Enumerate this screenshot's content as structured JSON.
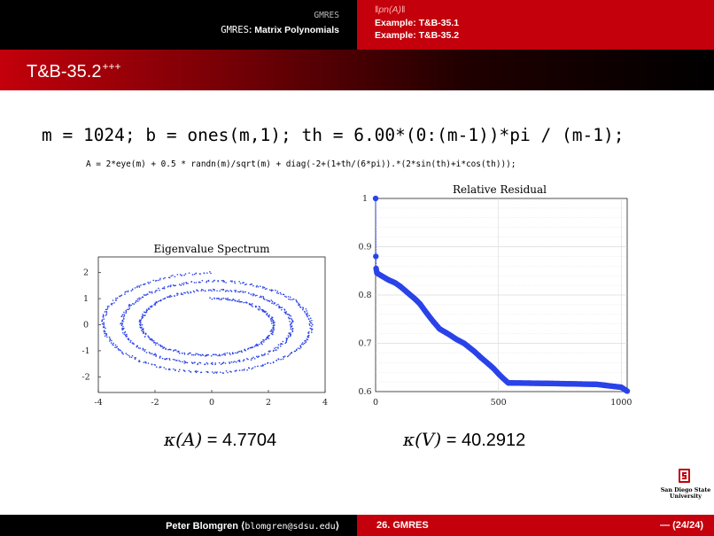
{
  "nav": {
    "section_top": "GMRES",
    "section_mono": "GMRES",
    "section_rest": ": Matrix Polynomials",
    "subsections": [
      "‖pn(A)‖",
      "Example:  T&B-35.1",
      "Example:  T&B-35.2"
    ]
  },
  "frame": {
    "title": "T&B-35.2",
    "title_sup": "+++"
  },
  "code": {
    "line1": "m = 1024; b = ones(m,1); th = 6.00*(0:(m-1))*pi / (m-1);",
    "line2": "A = 2*eye(m) + 0.5 * randn(m)/sqrt(m) + diag(-2+(1+th/(6*pi)).*(2*sin(th)+i*cos(th)));"
  },
  "chart_data": [
    {
      "type": "scatter",
      "title": "Eigenvalue Spectrum",
      "xlim": [
        -4,
        4
      ],
      "ylim": [
        -2.6,
        2.6
      ],
      "xticks": [
        -4,
        -2,
        0,
        2,
        4
      ],
      "yticks": [
        2,
        1,
        0,
        -1,
        -2
      ],
      "description_series": "eigenvalues of A along three nested elliptical turns: x = 2 + 2(1+th/(6pi))sin(th), y = (1+th/(6pi))cos(th), th in [0, 6pi]"
    },
    {
      "type": "line",
      "title": "Relative Residual",
      "xlim": [
        0,
        1024
      ],
      "ylim": [
        0.6,
        1.0
      ],
      "xticks": [
        0,
        500,
        1000
      ],
      "yticks": [
        1,
        0.9,
        0.8,
        0.7,
        0.6
      ],
      "x": [
        0,
        1,
        2,
        5,
        10,
        30,
        50,
        80,
        100,
        130,
        160,
        180,
        200,
        230,
        260,
        300,
        330,
        360,
        400,
        430,
        460,
        480,
        500,
        520,
        540,
        700,
        900,
        1000,
        1024
      ],
      "y": [
        1.0,
        0.88,
        0.855,
        0.846,
        0.844,
        0.838,
        0.832,
        0.825,
        0.818,
        0.805,
        0.792,
        0.782,
        0.768,
        0.748,
        0.73,
        0.718,
        0.708,
        0.7,
        0.684,
        0.67,
        0.657,
        0.648,
        0.637,
        0.627,
        0.618,
        0.617,
        0.615,
        0.609,
        0.601
      ]
    }
  ],
  "kappa": {
    "A_label": "κ(A)",
    "A_value": "4.7704",
    "V_label": "κ(V)",
    "V_value": "40.2912"
  },
  "logo": {
    "line1": "San Diego State",
    "line2": "University"
  },
  "footer": {
    "author": "Peter Blomgren",
    "email": "blomgren@sdsu.edu",
    "section": "26. GMRES",
    "page": "— (24/24)"
  },
  "colors": {
    "brand_red": "#c3000b",
    "series_blue": "#2a43e8"
  }
}
